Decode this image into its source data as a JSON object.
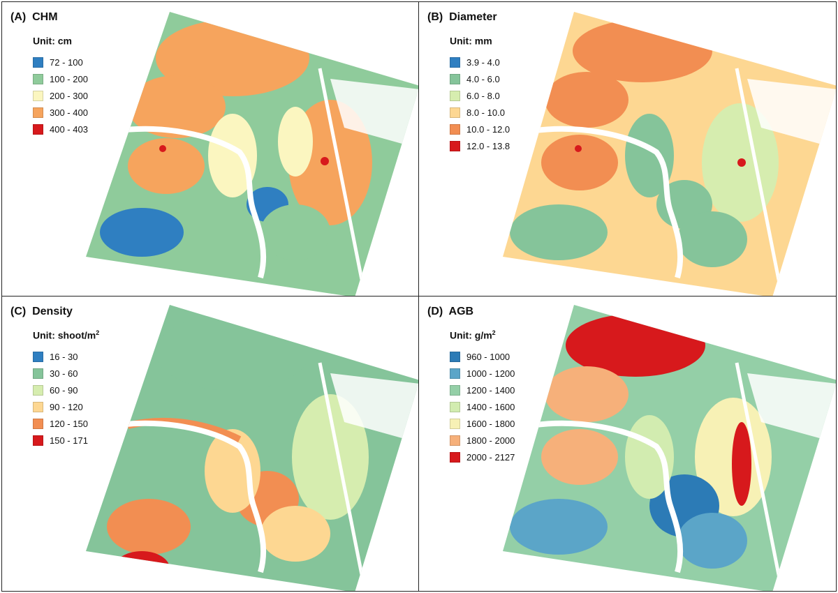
{
  "panels": [
    {
      "id": "a",
      "title": "(A)  CHM",
      "unit_text": "Unit: cm",
      "unit_sup": "",
      "legend": [
        {
          "label": "72 - 100",
          "color": "#2f7fc1"
        },
        {
          "label": "100 - 200",
          "color": "#8fcb9b"
        },
        {
          "label": "200 - 300",
          "color": "#fbf6c0"
        },
        {
          "label": "300 - 400",
          "color": "#f6a45d"
        },
        {
          "label": "400 - 403",
          "color": "#d7191c"
        }
      ]
    },
    {
      "id": "b",
      "title": "(B)  Diameter",
      "unit_text": "Unit: mm",
      "unit_sup": "",
      "legend": [
        {
          "label": "3.9 - 4.0",
          "color": "#2f7fc1"
        },
        {
          "label": "4.0 - 6.0",
          "color": "#85c49a"
        },
        {
          "label": "6.0 - 8.0",
          "color": "#d6edaf"
        },
        {
          "label": "8.0 - 10.0",
          "color": "#fdd792"
        },
        {
          "label": "10.0 - 12.0",
          "color": "#f28e52"
        },
        {
          "label": "12.0 - 13.8",
          "color": "#d7191c"
        }
      ]
    },
    {
      "id": "c",
      "title": "(C)  Density",
      "unit_text": "Unit: shoot/m",
      "unit_sup": "2",
      "legend": [
        {
          "label": "16 - 30",
          "color": "#2f7fc1"
        },
        {
          "label": "30 - 60",
          "color": "#85c49a"
        },
        {
          "label": "60 - 90",
          "color": "#d6edaf"
        },
        {
          "label": "90 - 120",
          "color": "#fdd792"
        },
        {
          "label": "120 - 150",
          "color": "#f28e52"
        },
        {
          "label": "150 - 171",
          "color": "#d7191c"
        }
      ]
    },
    {
      "id": "d",
      "title": "(D)  AGB",
      "unit_text": "Unit: g/m",
      "unit_sup": "2",
      "legend": [
        {
          "label": "960 - 1000",
          "color": "#2c7bb6"
        },
        {
          "label": "1000 - 1200",
          "color": "#5ba5c8"
        },
        {
          "label": "1200 - 1400",
          "color": "#94cfa7"
        },
        {
          "label": "1400 - 1600",
          "color": "#d2ecb0"
        },
        {
          "label": "1600 - 1800",
          "color": "#f7f1b5"
        },
        {
          "label": "1800 - 2000",
          "color": "#f6b07a"
        },
        {
          "label": "2000 - 2127",
          "color": "#d7191c"
        }
      ]
    }
  ]
}
